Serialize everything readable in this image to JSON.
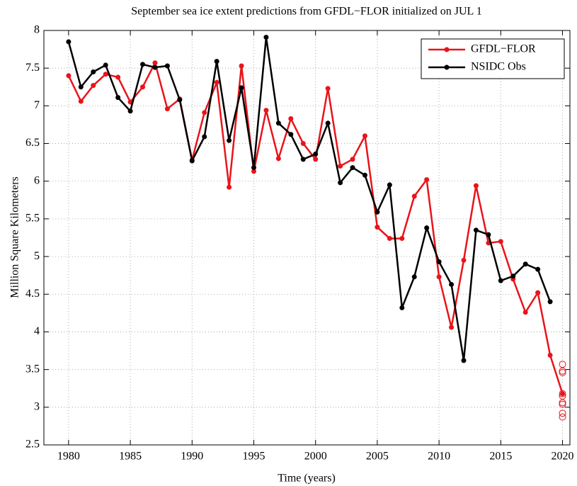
{
  "chart_data": {
    "type": "line",
    "title": "September sea ice extent predictions from GFDL−FLOR initialized on JUL 1",
    "x_label": "Time (years)",
    "y_label": "Million Square Kilometers",
    "x": [
      1980,
      1981,
      1982,
      1983,
      1984,
      1985,
      1986,
      1987,
      1988,
      1989,
      1990,
      1991,
      1992,
      1993,
      1994,
      1995,
      1996,
      1997,
      1998,
      1999,
      2000,
      2001,
      2002,
      2003,
      2004,
      2005,
      2006,
      2007,
      2008,
      2009,
      2010,
      2011,
      2012,
      2013,
      2014,
      2015,
      2016,
      2017,
      2018,
      2019,
      2020
    ],
    "series": [
      {
        "name": "GFDL−FLOR",
        "color": "#e8141b",
        "values": [
          7.4,
          7.06,
          7.27,
          7.42,
          7.38,
          7.05,
          7.25,
          7.57,
          6.96,
          7.09,
          6.28,
          6.91,
          7.31,
          5.92,
          7.53,
          6.13,
          6.94,
          6.3,
          6.83,
          6.5,
          6.29,
          7.23,
          6.2,
          6.29,
          6.6,
          5.39,
          5.24,
          5.24,
          5.8,
          6.02,
          4.73,
          4.06,
          4.95,
          5.94,
          5.18,
          5.2,
          4.7,
          4.26,
          4.52,
          3.69,
          3.18
        ]
      },
      {
        "name": "NSIDC Obs",
        "color": "#000000",
        "values": [
          7.85,
          7.25,
          7.45,
          7.54,
          7.11,
          6.93,
          7.55,
          7.51,
          7.53,
          7.08,
          6.27,
          6.59,
          7.59,
          6.54,
          7.24,
          6.18,
          7.91,
          6.77,
          6.62,
          6.29,
          6.36,
          6.77,
          5.98,
          6.18,
          6.08,
          5.59,
          5.95,
          4.32,
          4.73,
          5.38,
          4.93,
          4.63,
          3.62,
          5.35,
          5.29,
          4.68,
          4.74,
          4.9,
          4.83,
          4.4,
          null
        ]
      }
    ],
    "ensemble": {
      "color": "#e8141b",
      "x": [
        2020,
        2020,
        2020,
        2020,
        2020,
        2020,
        2020,
        2020,
        2020
      ],
      "values": [
        3.57,
        3.48,
        3.46,
        3.18,
        3.15,
        3.06,
        3.04,
        2.92,
        2.87
      ]
    },
    "xlim": [
      1978,
      2020.6
    ],
    "xticks": [
      1980,
      1985,
      1990,
      1995,
      2000,
      2005,
      2010,
      2015,
      2020
    ],
    "ylim": [
      2.5,
      8
    ],
    "yticks": [
      2.5,
      3,
      3.5,
      4,
      4.5,
      5,
      5.5,
      6,
      6.5,
      7,
      7.5,
      8
    ],
    "grid": true,
    "legend": "top-right"
  }
}
